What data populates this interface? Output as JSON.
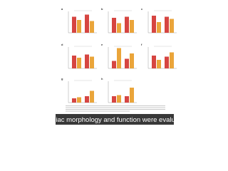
{
  "figure": {
    "colors": [
      "#d64541",
      "#eaa53a"
    ],
    "ylim": [
      0,
      1
    ],
    "panels": [
      {
        "label": "a",
        "values": [
          0.75,
          0.6,
          0.85,
          0.55
        ]
      },
      {
        "label": "b",
        "values": [
          0.7,
          0.45,
          0.75,
          0.6
        ]
      },
      {
        "label": "c",
        "values": [
          0.8,
          0.5,
          0.75,
          0.65
        ]
      },
      {
        "label": "d",
        "values": [
          0.6,
          0.5,
          0.65,
          0.55
        ]
      },
      {
        "label": "e",
        "values": [
          0.35,
          0.95,
          0.45,
          0.7
        ]
      },
      {
        "label": "f",
        "values": [
          0.6,
          0.4,
          0.55,
          0.75
        ]
      },
      {
        "label": "g",
        "values": [
          0.2,
          0.25,
          0.3,
          0.55
        ]
      },
      {
        "label": "h",
        "values": [
          0.3,
          0.35,
          0.3,
          0.7
        ]
      }
    ]
  },
  "subtitle": "Cardiac morphology and function were evaluated"
}
